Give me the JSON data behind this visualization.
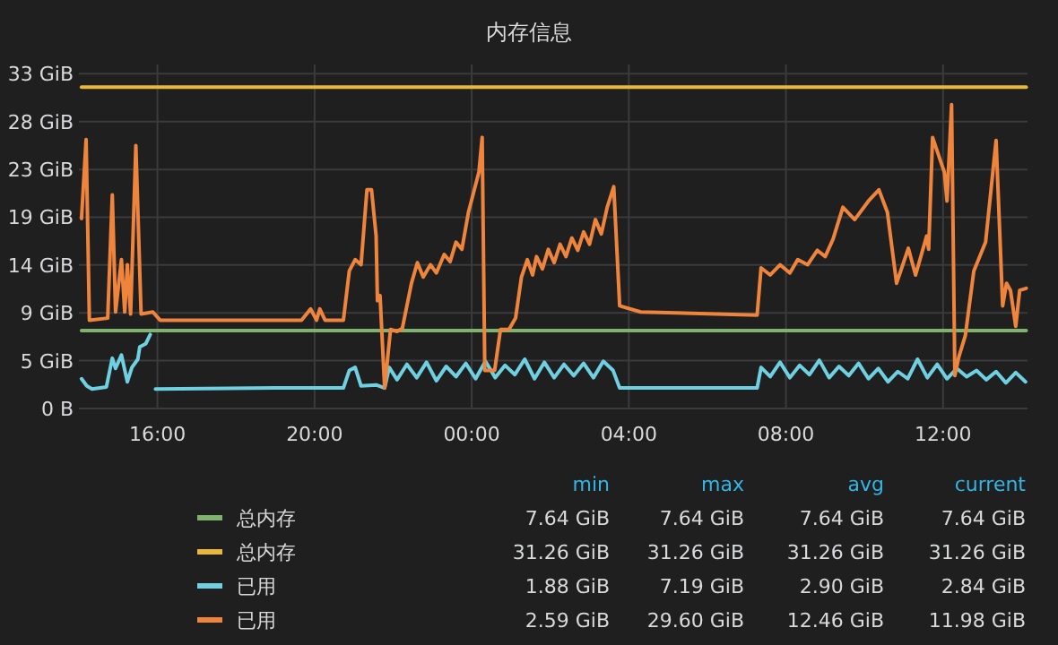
{
  "chart_data": {
    "type": "line",
    "title": "内存信息",
    "ylim": [
      0,
      33.5
    ],
    "yticks": [
      {
        "value": 0,
        "label": "0 B"
      },
      {
        "value": 4.66,
        "label": "5 GiB"
      },
      {
        "value": 9.31,
        "label": "9 GiB"
      },
      {
        "value": 13.97,
        "label": "14 GiB"
      },
      {
        "value": 18.63,
        "label": "19 GiB"
      },
      {
        "value": 23.28,
        "label": "23 GiB"
      },
      {
        "value": 27.94,
        "label": "28 GiB"
      },
      {
        "value": 32.6,
        "label": "33 GiB"
      }
    ],
    "xlim": [
      "2000-01-01T14:00",
      "2000-01-02T14:09"
    ],
    "xticks": [
      {
        "value": "2000-01-01T16:00",
        "label": "16:00"
      },
      {
        "value": "2000-01-01T20:00",
        "label": "20:00"
      },
      {
        "value": "2000-01-02T00:00",
        "label": "00:00"
      },
      {
        "value": "2000-01-02T04:00",
        "label": "04:00"
      },
      {
        "value": "2000-01-02T08:00",
        "label": "08:00"
      },
      {
        "value": "2000-01-02T12:00",
        "label": "12:00"
      }
    ],
    "grid": true,
    "legend": "bottom",
    "marker": "none",
    "line_style": "solid",
    "annotations": [
      "min",
      "max",
      "avg",
      "current",
      "7.64 GiB",
      "7.64 GiB",
      "7.64 GiB",
      "7.64 GiB",
      "31.26 GiB",
      "31.26 GiB",
      "31.26 GiB",
      "31.26 GiB",
      "1.88 GiB",
      "7.19 GiB",
      "2.90 GiB",
      "2.84 GiB",
      "2.59 GiB",
      "29.60 GiB",
      "12.46 GiB",
      "11.98 GiB"
    ],
    "series": [
      {
        "name": "总内存",
        "color": "#7eb26d",
        "x": [
          "2000-01-01T14:04",
          "2000-01-02T14:07"
        ],
        "values": [
          7.6,
          7.6
        ]
      },
      {
        "name": "总内存",
        "color": "#eab839",
        "x": [
          "2000-01-01T14:04",
          "2000-01-02T14:07"
        ],
        "values": [
          31.3,
          31.3
        ]
      },
      {
        "name": "已用",
        "color": "#6ed0e0",
        "x": [
          "2000-01-01T14:04",
          "2000-01-01T14:12",
          "2000-01-01T14:20",
          "2000-01-01T14:42",
          "2000-01-01T14:51",
          "2000-01-01T14:56",
          "2000-01-01T15:05",
          "2000-01-01T15:14",
          "2000-01-01T15:21",
          "2000-01-01T15:30",
          "2000-01-01T15:33",
          "2000-01-01T15:42",
          "2000-01-01T15:49",
          "2000-01-01T15:54",
          "2000-01-01T15:57",
          "2000-01-01T19:00",
          "2000-01-01T20:44",
          "2000-01-01T20:53",
          "2000-01-01T21:02",
          "2000-01-01T21:11",
          "2000-01-01T21:34",
          "2000-01-01T21:47",
          "2000-01-01T21:54",
          "2000-01-01T22:06",
          "2000-01-01T22:21",
          "2000-01-01T22:36",
          "2000-01-01T22:51",
          "2000-01-01T23:06",
          "2000-01-01T23:21",
          "2000-01-01T23:36",
          "2000-01-01T23:51",
          "2000-01-02T00:06",
          "2000-01-02T00:21",
          "2000-01-02T00:36",
          "2000-01-02T00:51",
          "2000-01-02T01:06",
          "2000-01-02T01:21",
          "2000-01-02T01:36",
          "2000-01-02T01:51",
          "2000-01-02T02:06",
          "2000-01-02T02:21",
          "2000-01-02T02:36",
          "2000-01-02T02:51",
          "2000-01-02T03:06",
          "2000-01-02T03:21",
          "2000-01-02T03:36",
          "2000-01-02T03:46",
          "2000-01-02T07:16",
          "2000-01-02T07:22",
          "2000-01-02T07:36",
          "2000-01-02T07:51",
          "2000-01-02T08:06",
          "2000-01-02T08:21",
          "2000-01-02T08:36",
          "2000-01-02T08:51",
          "2000-01-02T09:06",
          "2000-01-02T09:21",
          "2000-01-02T09:36",
          "2000-01-02T09:51",
          "2000-01-02T10:06",
          "2000-01-02T10:21",
          "2000-01-02T10:36",
          "2000-01-02T10:51",
          "2000-01-02T11:06",
          "2000-01-02T11:21",
          "2000-01-02T11:36",
          "2000-01-02T11:51",
          "2000-01-02T12:06",
          "2000-01-02T12:21",
          "2000-01-02T12:36",
          "2000-01-02T12:51",
          "2000-01-02T13:06",
          "2000-01-02T13:21",
          "2000-01-02T13:36",
          "2000-01-02T13:51",
          "2000-01-02T14:06"
        ],
        "values": [
          2.9,
          2.2,
          1.9,
          2.1,
          4.9,
          3.9,
          5.2,
          2.6,
          4.0,
          4.8,
          6.0,
          6.3,
          7.2,
          null,
          1.9,
          2.0,
          2.0,
          3.7,
          4.0,
          2.2,
          2.3,
          2.0,
          4.0,
          2.8,
          4.3,
          3.0,
          4.5,
          2.7,
          4.1,
          3.1,
          4.4,
          2.9,
          4.6,
          3.0,
          4.2,
          3.3,
          4.8,
          2.9,
          4.5,
          3.0,
          4.3,
          3.2,
          4.4,
          3.0,
          4.6,
          3.7,
          2.0,
          2.0,
          4.0,
          3.1,
          4.5,
          3.0,
          4.2,
          3.3,
          4.7,
          3.0,
          4.1,
          3.2,
          4.4,
          2.9,
          3.9,
          2.6,
          3.6,
          2.9,
          4.8,
          3.0,
          4.3,
          2.9,
          3.9,
          3.1,
          3.7,
          2.8,
          3.6,
          2.5,
          3.5,
          2.6
        ]
      },
      {
        "name": "已用",
        "color": "#ef843c",
        "x": [
          "2000-01-01T14:04",
          "2000-01-01T14:11",
          "2000-01-01T14:16",
          "2000-01-01T14:44",
          "2000-01-01T14:51",
          "2000-01-01T14:56",
          "2000-01-01T15:05",
          "2000-01-01T15:10",
          "2000-01-01T15:14",
          "2000-01-01T15:19",
          "2000-01-01T15:27",
          "2000-01-01T15:35",
          "2000-01-01T15:53",
          "2000-01-01T16:04",
          "2000-01-01T19:40",
          "2000-01-01T19:54",
          "2000-01-01T20:03",
          "2000-01-01T20:08",
          "2000-01-01T20:16",
          "2000-01-01T20:44",
          "2000-01-01T20:53",
          "2000-01-01T21:02",
          "2000-01-01T21:11",
          "2000-01-01T21:20",
          "2000-01-01T21:27",
          "2000-01-01T21:34",
          "2000-01-01T21:36",
          "2000-01-01T21:40",
          "2000-01-01T21:47",
          "2000-01-01T21:56",
          "2000-01-01T22:06",
          "2000-01-01T22:14",
          "2000-01-01T22:28",
          "2000-01-01T22:37",
          "2000-01-01T22:46",
          "2000-01-01T22:57",
          "2000-01-01T23:06",
          "2000-01-01T23:18",
          "2000-01-01T23:27",
          "2000-01-01T23:36",
          "2000-01-01T23:45",
          "2000-01-01T23:55",
          "2000-01-02T00:04",
          "2000-01-02T00:11",
          "2000-01-02T00:16",
          "2000-01-02T00:20",
          "2000-01-02T00:35",
          "2000-01-02T00:44",
          "2000-01-02T00:57",
          "2000-01-02T01:07",
          "2000-01-02T01:16",
          "2000-01-02T01:25",
          "2000-01-02T01:33",
          "2000-01-02T01:39",
          "2000-01-02T01:48",
          "2000-01-02T01:57",
          "2000-01-02T02:06",
          "2000-01-02T02:15",
          "2000-01-02T02:24",
          "2000-01-02T02:33",
          "2000-01-02T02:42",
          "2000-01-02T02:51",
          "2000-01-02T03:00",
          "2000-01-02T03:09",
          "2000-01-02T03:18",
          "2000-01-02T03:27",
          "2000-01-02T03:37",
          "2000-01-02T03:46",
          "2000-01-02T04:18",
          "2000-01-02T07:16",
          "2000-01-02T07:22",
          "2000-01-02T07:36",
          "2000-01-02T07:51",
          "2000-01-02T08:06",
          "2000-01-02T08:18",
          "2000-01-02T08:33",
          "2000-01-02T08:48",
          "2000-01-02T09:00",
          "2000-01-02T09:12",
          "2000-01-02T09:27",
          "2000-01-02T09:45",
          "2000-01-02T10:06",
          "2000-01-02T10:22",
          "2000-01-02T10:35",
          "2000-01-02T10:49",
          "2000-01-02T11:07",
          "2000-01-02T11:18",
          "2000-01-02T11:35",
          "2000-01-02T11:38",
          "2000-01-02T11:44",
          "2000-01-02T12:02",
          "2000-01-02T12:06",
          "2000-01-02T12:13",
          "2000-01-02T12:18",
          "2000-01-02T12:24",
          "2000-01-02T12:34",
          "2000-01-02T12:47",
          "2000-01-02T13:05",
          "2000-01-02T13:21",
          "2000-01-02T13:31",
          "2000-01-02T13:37",
          "2000-01-02T13:43",
          "2000-01-02T13:51",
          "2000-01-02T13:57",
          "2000-01-02T14:07"
        ],
        "values": [
          18.5,
          26.2,
          8.6,
          8.8,
          20.8,
          9.4,
          14.5,
          9.4,
          14.0,
          9.2,
          25.6,
          9.2,
          9.4,
          8.6,
          8.6,
          9.7,
          8.6,
          9.7,
          8.6,
          8.6,
          13.4,
          14.5,
          14.0,
          21.3,
          21.3,
          16.8,
          10.5,
          11.0,
          2.0,
          7.7,
          7.5,
          7.8,
          12.2,
          14.2,
          12.8,
          14.0,
          13.2,
          15.0,
          14.3,
          16.2,
          15.5,
          19.1,
          21.3,
          23.0,
          26.4,
          3.7,
          3.7,
          7.7,
          7.7,
          8.8,
          12.8,
          14.5,
          13.0,
          14.8,
          13.6,
          15.5,
          14.2,
          16.0,
          14.8,
          16.6,
          15.4,
          17.2,
          16.0,
          18.4,
          17.0,
          19.6,
          21.6,
          10.0,
          9.4,
          9.1,
          13.7,
          13.0,
          14.0,
          13.2,
          14.5,
          14.0,
          15.4,
          14.8,
          16.5,
          19.6,
          18.4,
          20.2,
          21.3,
          19.1,
          12.2,
          15.6,
          13.0,
          16.8,
          15.5,
          26.4,
          23.0,
          20.2,
          29.6,
          3.2,
          5.0,
          7.1,
          13.4,
          16.2,
          26.1,
          10.0,
          12.2,
          11.5,
          8.0,
          11.5,
          11.7
        ]
      }
    ]
  }
}
